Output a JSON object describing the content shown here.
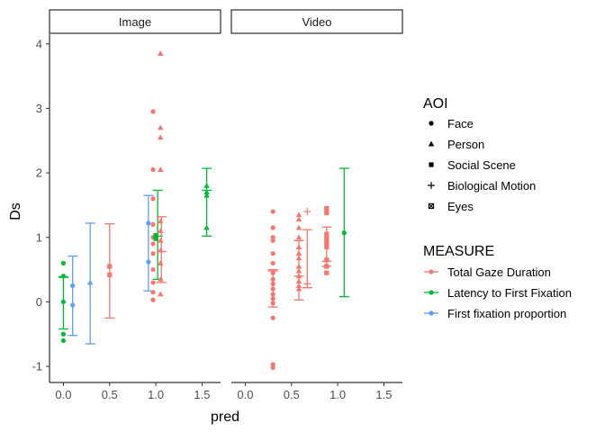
{
  "chart_data": {
    "type": "scatter",
    "xlabel": "pred",
    "ylabel": "Ds",
    "xlim": [
      -0.15,
      1.7
    ],
    "ylim": [
      -1.25,
      4.15
    ],
    "x_ticks": [
      0.0,
      0.5,
      1.0,
      1.5
    ],
    "x_tick_labels": [
      "0.0",
      "0.5",
      "1.0",
      "1.5"
    ],
    "y_ticks": [
      -1,
      0,
      1,
      2,
      3,
      4
    ],
    "y_tick_labels": [
      "-1",
      "0",
      "1",
      "2",
      "3",
      "4"
    ],
    "facets": [
      "Image",
      "Video"
    ],
    "legend_placement": "right",
    "grid": false,
    "legends": {
      "shape": {
        "title": "AOI",
        "entries": [
          {
            "label": "Face",
            "shape": "circle"
          },
          {
            "label": "Person",
            "shape": "triangle"
          },
          {
            "label": "Social Scene",
            "shape": "square"
          },
          {
            "label": "Biological Motion",
            "shape": "plus"
          },
          {
            "label": "Eyes",
            "shape": "square-x"
          }
        ]
      },
      "color": {
        "title": "MEASURE",
        "entries": [
          {
            "label": "Total Gaze Duration",
            "color": "#F8766D"
          },
          {
            "label": "Latency to First Fixation",
            "color": "#00BA38"
          },
          {
            "label": "First fixation proportion",
            "color": "#619CFF"
          }
        ]
      }
    },
    "points": [
      {
        "facet": "Image",
        "measure": "Latency to First Fixation",
        "aoi": "Face",
        "x": 0.0,
        "y": 0.6
      },
      {
        "facet": "Image",
        "measure": "Latency to First Fixation",
        "aoi": "Face",
        "x": 0.0,
        "y": 0.4
      },
      {
        "facet": "Image",
        "measure": "Latency to First Fixation",
        "aoi": "Face",
        "x": 0.0,
        "y": 0.0
      },
      {
        "facet": "Image",
        "measure": "Latency to First Fixation",
        "aoi": "Face",
        "x": 0.0,
        "y": -0.5
      },
      {
        "facet": "Image",
        "measure": "Latency to First Fixation",
        "aoi": "Face",
        "x": 0.0,
        "y": -0.6
      },
      {
        "facet": "Image",
        "measure": "First fixation proportion",
        "aoi": "Face",
        "x": 0.1,
        "y": 0.25
      },
      {
        "facet": "Image",
        "measure": "First fixation proportion",
        "aoi": "Face",
        "x": 0.1,
        "y": -0.05
      },
      {
        "facet": "Image",
        "measure": "First fixation proportion",
        "aoi": "Person",
        "x": 0.29,
        "y": 0.3
      },
      {
        "facet": "Image",
        "measure": "Total Gaze Duration",
        "aoi": "Social Scene",
        "x": 0.5,
        "y": 0.55
      },
      {
        "facet": "Image",
        "measure": "Total Gaze Duration",
        "aoi": "Social Scene",
        "x": 0.5,
        "y": 0.42
      },
      {
        "facet": "Image",
        "measure": "First fixation proportion",
        "aoi": "Face",
        "x": 0.92,
        "y": 1.22
      },
      {
        "facet": "Image",
        "measure": "First fixation proportion",
        "aoi": "Face",
        "x": 0.92,
        "y": 0.62
      },
      {
        "facet": "Image",
        "measure": "Total Gaze Duration",
        "aoi": "Face",
        "x": 0.97,
        "y": 2.95
      },
      {
        "facet": "Image",
        "measure": "Total Gaze Duration",
        "aoi": "Face",
        "x": 0.97,
        "y": 2.05
      },
      {
        "facet": "Image",
        "measure": "Total Gaze Duration",
        "aoi": "Face",
        "x": 0.97,
        "y": 1.6
      },
      {
        "facet": "Image",
        "measure": "Total Gaze Duration",
        "aoi": "Face",
        "x": 0.97,
        "y": 1.2
      },
      {
        "facet": "Image",
        "measure": "Total Gaze Duration",
        "aoi": "Face",
        "x": 0.97,
        "y": 1.0
      },
      {
        "facet": "Image",
        "measure": "Total Gaze Duration",
        "aoi": "Face",
        "x": 0.97,
        "y": 0.9
      },
      {
        "facet": "Image",
        "measure": "Total Gaze Duration",
        "aoi": "Face",
        "x": 0.97,
        "y": 0.75
      },
      {
        "facet": "Image",
        "measure": "Total Gaze Duration",
        "aoi": "Face",
        "x": 0.97,
        "y": 0.5
      },
      {
        "facet": "Image",
        "measure": "Total Gaze Duration",
        "aoi": "Face",
        "x": 0.97,
        "y": 0.3
      },
      {
        "facet": "Image",
        "measure": "Total Gaze Duration",
        "aoi": "Face",
        "x": 0.97,
        "y": 0.15
      },
      {
        "facet": "Image",
        "measure": "Total Gaze Duration",
        "aoi": "Face",
        "x": 0.97,
        "y": 0.03
      },
      {
        "facet": "Image",
        "measure": "Latency to First Fixation",
        "aoi": "Social Scene",
        "x": 1.0,
        "y": 1.03
      },
      {
        "facet": "Image",
        "measure": "Latency to First Fixation",
        "aoi": "Social Scene",
        "x": 1.0,
        "y": 0.98
      },
      {
        "facet": "Image",
        "measure": "Total Gaze Duration",
        "aoi": "Person",
        "x": 1.05,
        "y": 3.85
      },
      {
        "facet": "Image",
        "measure": "Total Gaze Duration",
        "aoi": "Person",
        "x": 1.05,
        "y": 2.7
      },
      {
        "facet": "Image",
        "measure": "Total Gaze Duration",
        "aoi": "Person",
        "x": 1.05,
        "y": 2.55
      },
      {
        "facet": "Image",
        "measure": "Total Gaze Duration",
        "aoi": "Person",
        "x": 1.05,
        "y": 2.05
      },
      {
        "facet": "Image",
        "measure": "Total Gaze Duration",
        "aoi": "Person",
        "x": 1.05,
        "y": 1.25
      },
      {
        "facet": "Image",
        "measure": "Total Gaze Duration",
        "aoi": "Person",
        "x": 1.05,
        "y": 1.1
      },
      {
        "facet": "Image",
        "measure": "Total Gaze Duration",
        "aoi": "Person",
        "x": 1.05,
        "y": 0.95
      },
      {
        "facet": "Image",
        "measure": "Total Gaze Duration",
        "aoi": "Person",
        "x": 1.05,
        "y": 0.8
      },
      {
        "facet": "Image",
        "measure": "Total Gaze Duration",
        "aoi": "Person",
        "x": 1.05,
        "y": 0.6
      },
      {
        "facet": "Image",
        "measure": "Total Gaze Duration",
        "aoi": "Person",
        "x": 1.05,
        "y": 0.35
      },
      {
        "facet": "Image",
        "measure": "Total Gaze Duration",
        "aoi": "Person",
        "x": 1.05,
        "y": 0.12
      },
      {
        "facet": "Image",
        "measure": "Latency to First Fixation",
        "aoi": "Person",
        "x": 1.55,
        "y": 1.8
      },
      {
        "facet": "Image",
        "measure": "Latency to First Fixation",
        "aoi": "Person",
        "x": 1.55,
        "y": 1.7
      },
      {
        "facet": "Image",
        "measure": "Latency to First Fixation",
        "aoi": "Person",
        "x": 1.55,
        "y": 1.65
      },
      {
        "facet": "Image",
        "measure": "Latency to First Fixation",
        "aoi": "Person",
        "x": 1.55,
        "y": 1.15
      },
      {
        "facet": "Video",
        "measure": "Total Gaze Duration",
        "aoi": "Face",
        "x": 0.3,
        "y": 1.4
      },
      {
        "facet": "Video",
        "measure": "Total Gaze Duration",
        "aoi": "Face",
        "x": 0.3,
        "y": 1.15
      },
      {
        "facet": "Video",
        "measure": "Total Gaze Duration",
        "aoi": "Face",
        "x": 0.3,
        "y": 1.0
      },
      {
        "facet": "Video",
        "measure": "Total Gaze Duration",
        "aoi": "Face",
        "x": 0.3,
        "y": 0.95
      },
      {
        "facet": "Video",
        "measure": "Total Gaze Duration",
        "aoi": "Face",
        "x": 0.3,
        "y": 0.75
      },
      {
        "facet": "Video",
        "measure": "Total Gaze Duration",
        "aoi": "Face",
        "x": 0.3,
        "y": 0.6
      },
      {
        "facet": "Video",
        "measure": "Total Gaze Duration",
        "aoi": "Face",
        "x": 0.3,
        "y": 0.45
      },
      {
        "facet": "Video",
        "measure": "Total Gaze Duration",
        "aoi": "Face",
        "x": 0.3,
        "y": 0.35
      },
      {
        "facet": "Video",
        "measure": "Total Gaze Duration",
        "aoi": "Face",
        "x": 0.3,
        "y": 0.28
      },
      {
        "facet": "Video",
        "measure": "Total Gaze Duration",
        "aoi": "Face",
        "x": 0.3,
        "y": 0.2
      },
      {
        "facet": "Video",
        "measure": "Total Gaze Duration",
        "aoi": "Face",
        "x": 0.3,
        "y": 0.12
      },
      {
        "facet": "Video",
        "measure": "Total Gaze Duration",
        "aoi": "Face",
        "x": 0.3,
        "y": 0.05
      },
      {
        "facet": "Video",
        "measure": "Total Gaze Duration",
        "aoi": "Face",
        "x": 0.3,
        "y": -0.02
      },
      {
        "facet": "Video",
        "measure": "Total Gaze Duration",
        "aoi": "Face",
        "x": 0.3,
        "y": -0.25
      },
      {
        "facet": "Video",
        "measure": "Total Gaze Duration",
        "aoi": "Face",
        "x": 0.3,
        "y": -0.97
      },
      {
        "facet": "Video",
        "measure": "Total Gaze Duration",
        "aoi": "Face",
        "x": 0.3,
        "y": -1.02
      },
      {
        "facet": "Video",
        "measure": "Total Gaze Duration",
        "aoi": "Person",
        "x": 0.58,
        "y": 1.35
      },
      {
        "facet": "Video",
        "measure": "Total Gaze Duration",
        "aoi": "Person",
        "x": 0.58,
        "y": 1.28
      },
      {
        "facet": "Video",
        "measure": "Total Gaze Duration",
        "aoi": "Person",
        "x": 0.58,
        "y": 1.15
      },
      {
        "facet": "Video",
        "measure": "Total Gaze Duration",
        "aoi": "Person",
        "x": 0.58,
        "y": 1.0
      },
      {
        "facet": "Video",
        "measure": "Total Gaze Duration",
        "aoi": "Person",
        "x": 0.58,
        "y": 0.85
      },
      {
        "facet": "Video",
        "measure": "Total Gaze Duration",
        "aoi": "Person",
        "x": 0.58,
        "y": 0.75
      },
      {
        "facet": "Video",
        "measure": "Total Gaze Duration",
        "aoi": "Person",
        "x": 0.58,
        "y": 0.68
      },
      {
        "facet": "Video",
        "measure": "Total Gaze Duration",
        "aoi": "Person",
        "x": 0.58,
        "y": 0.55
      },
      {
        "facet": "Video",
        "measure": "Total Gaze Duration",
        "aoi": "Person",
        "x": 0.58,
        "y": 0.48
      },
      {
        "facet": "Video",
        "measure": "Total Gaze Duration",
        "aoi": "Person",
        "x": 0.58,
        "y": 0.4
      },
      {
        "facet": "Video",
        "measure": "Total Gaze Duration",
        "aoi": "Person",
        "x": 0.58,
        "y": 0.32
      },
      {
        "facet": "Video",
        "measure": "Total Gaze Duration",
        "aoi": "Person",
        "x": 0.58,
        "y": 0.25
      },
      {
        "facet": "Video",
        "measure": "Total Gaze Duration",
        "aoi": "Person",
        "x": 0.58,
        "y": 0.2
      },
      {
        "facet": "Video",
        "measure": "Total Gaze Duration",
        "aoi": "Biological Motion",
        "x": 0.67,
        "y": 1.4
      },
      {
        "facet": "Video",
        "measure": "Total Gaze Duration",
        "aoi": "Biological Motion",
        "x": 0.67,
        "y": 0.28
      },
      {
        "facet": "Video",
        "measure": "Total Gaze Duration",
        "aoi": "Social Scene",
        "x": 0.88,
        "y": 1.45
      },
      {
        "facet": "Video",
        "measure": "Total Gaze Duration",
        "aoi": "Social Scene",
        "x": 0.88,
        "y": 1.38
      },
      {
        "facet": "Video",
        "measure": "Total Gaze Duration",
        "aoi": "Social Scene",
        "x": 0.88,
        "y": 1.05
      },
      {
        "facet": "Video",
        "measure": "Total Gaze Duration",
        "aoi": "Social Scene",
        "x": 0.88,
        "y": 0.98
      },
      {
        "facet": "Video",
        "measure": "Total Gaze Duration",
        "aoi": "Social Scene",
        "x": 0.88,
        "y": 0.92
      },
      {
        "facet": "Video",
        "measure": "Total Gaze Duration",
        "aoi": "Social Scene",
        "x": 0.88,
        "y": 0.85
      },
      {
        "facet": "Video",
        "measure": "Total Gaze Duration",
        "aoi": "Social Scene",
        "x": 0.88,
        "y": 0.65
      },
      {
        "facet": "Video",
        "measure": "Total Gaze Duration",
        "aoi": "Social Scene",
        "x": 0.88,
        "y": 0.55
      },
      {
        "facet": "Video",
        "measure": "Total Gaze Duration",
        "aoi": "Social Scene",
        "x": 0.88,
        "y": 0.45
      },
      {
        "facet": "Video",
        "measure": "Latency to First Fixation",
        "aoi": "Face",
        "x": 1.07,
        "y": 1.07
      }
    ],
    "error_bars": [
      {
        "facet": "Image",
        "measure": "Latency to First Fixation",
        "x": 0.0,
        "low": -0.42,
        "high": 0.39,
        "mid": 0.38
      },
      {
        "facet": "Image",
        "measure": "First fixation proportion",
        "x": 0.1,
        "low": -0.52,
        "high": 0.71
      },
      {
        "facet": "Image",
        "measure": "First fixation proportion",
        "x": 0.29,
        "low": -0.65,
        "high": 1.22
      },
      {
        "facet": "Image",
        "measure": "Total Gaze Duration",
        "x": 0.5,
        "low": -0.25,
        "high": 1.21
      },
      {
        "facet": "Image",
        "measure": "First fixation proportion",
        "x": 0.92,
        "low": 0.17,
        "high": 1.65
      },
      {
        "facet": "Image",
        "measure": "Latency to First Fixation",
        "x": 1.02,
        "low": 0.35,
        "high": 1.73,
        "mid": 1.02
      },
      {
        "facet": "Image",
        "measure": "Total Gaze Duration",
        "x": 1.06,
        "low": 0.3,
        "high": 1.32,
        "mid": 0.78
      },
      {
        "facet": "Image",
        "measure": "Latency to First Fixation",
        "x": 1.55,
        "low": 1.02,
        "high": 2.07,
        "mid": 1.73
      },
      {
        "facet": "Video",
        "measure": "Total Gaze Duration",
        "x": 0.3,
        "low": -0.08,
        "high": 0.5,
        "mid": 0.48
      },
      {
        "facet": "Video",
        "measure": "Total Gaze Duration",
        "x": 0.58,
        "low": 0.03,
        "high": 0.95,
        "mid": 0.4
      },
      {
        "facet": "Video",
        "measure": "Total Gaze Duration",
        "x": 0.67,
        "low": 0.22,
        "high": 1.12,
        "mid": 0.22
      },
      {
        "facet": "Video",
        "measure": "Total Gaze Duration",
        "x": 0.88,
        "low": 0.55,
        "high": 1.16,
        "mid": 0.63
      },
      {
        "facet": "Video",
        "measure": "Latency to First Fixation",
        "x": 1.07,
        "low": 0.08,
        "high": 2.07
      }
    ]
  }
}
